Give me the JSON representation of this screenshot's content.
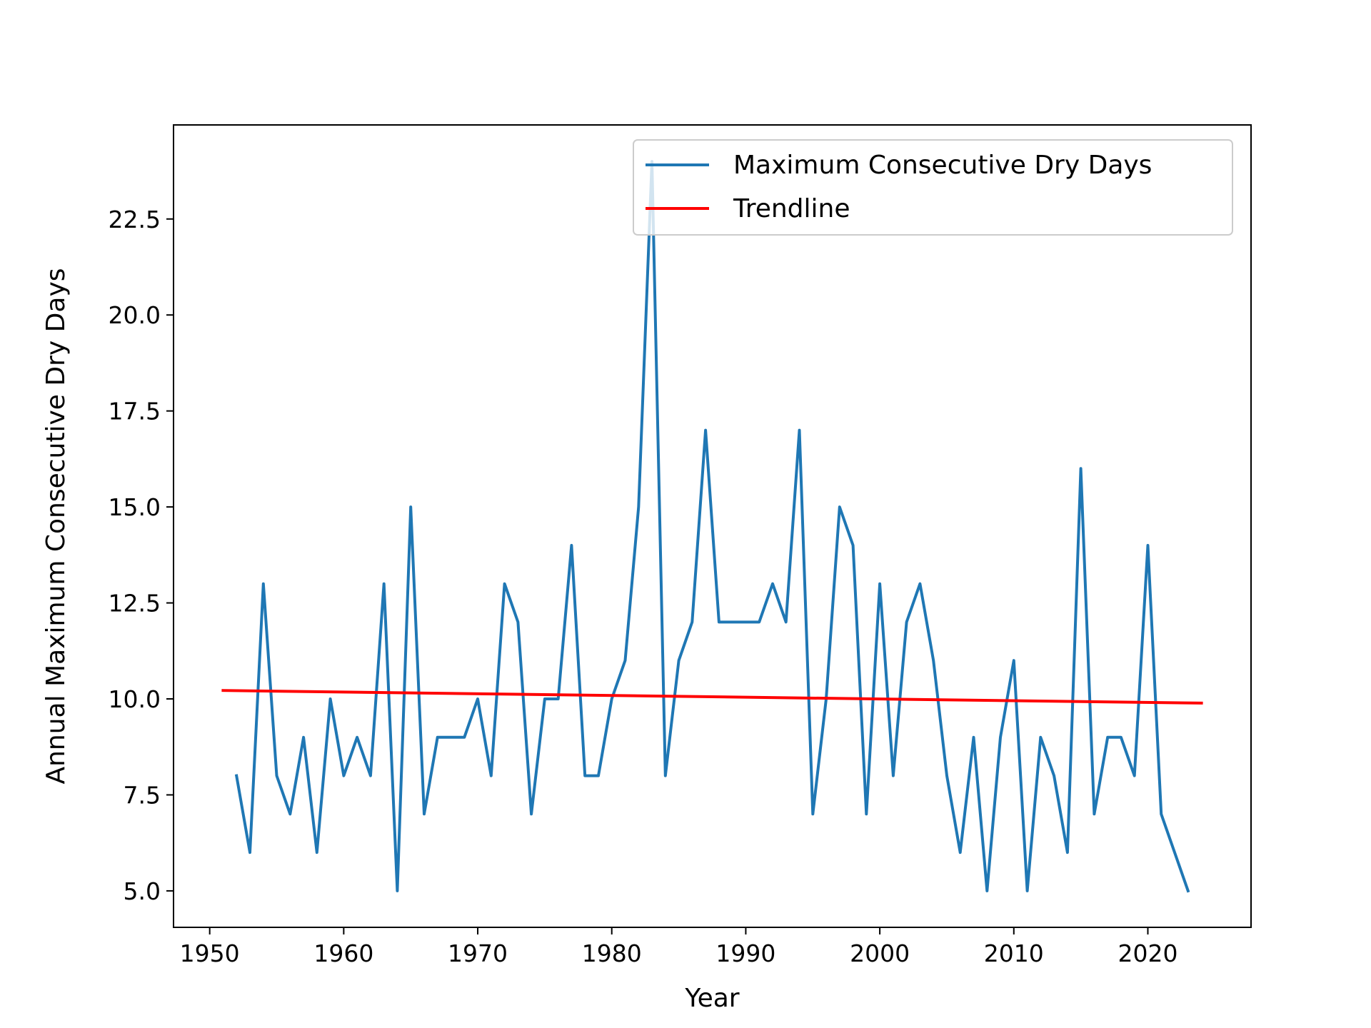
{
  "chart_data": {
    "type": "line",
    "title": "",
    "xlabel": "Year",
    "ylabel": "Annual Maximum Consecutive Dry Days",
    "xlim": [
      1947.3,
      2027.7
    ],
    "ylim": [
      4.05,
      24.95
    ],
    "xticks": [
      1950,
      1960,
      1970,
      1980,
      1990,
      2000,
      2010,
      2020
    ],
    "xtick_labels": [
      "1950",
      "1960",
      "1970",
      "1980",
      "1990",
      "2000",
      "2010",
      "2020"
    ],
    "yticks": [
      5.0,
      7.5,
      10.0,
      12.5,
      15.0,
      17.5,
      20.0,
      22.5
    ],
    "ytick_labels": [
      "5.0",
      "7.5",
      "10.0",
      "12.5",
      "15.0",
      "17.5",
      "20.0",
      "22.5"
    ],
    "grid": false,
    "legend": "top-right",
    "series": [
      {
        "name": "Maximum Consecutive Dry Days",
        "color": "#1f77b4",
        "x": [
          1952,
          1953,
          1954,
          1955,
          1956,
          1957,
          1958,
          1959,
          1960,
          1961,
          1962,
          1963,
          1964,
          1965,
          1966,
          1967,
          1968,
          1969,
          1970,
          1971,
          1972,
          1973,
          1974,
          1975,
          1976,
          1977,
          1978,
          1979,
          1980,
          1981,
          1982,
          1983,
          1984,
          1985,
          1986,
          1987,
          1988,
          1989,
          1990,
          1991,
          1992,
          1993,
          1994,
          1995,
          1996,
          1997,
          1998,
          1999,
          2000,
          2001,
          2002,
          2003,
          2004,
          2005,
          2006,
          2007,
          2008,
          2009,
          2010,
          2011,
          2012,
          2013,
          2014,
          2015,
          2016,
          2017,
          2018,
          2019,
          2020,
          2021,
          2022,
          2023
        ],
        "values": [
          8,
          6,
          13,
          8,
          7,
          9,
          6,
          10,
          8,
          9,
          8,
          13,
          5,
          15,
          7,
          9,
          9,
          9,
          10,
          8,
          13,
          12,
          7,
          10,
          10,
          14,
          8,
          8,
          10,
          11,
          15,
          24,
          8,
          11,
          12,
          17,
          12,
          12,
          12,
          12,
          13,
          12,
          17,
          7,
          10,
          15,
          14,
          7,
          13,
          8,
          12,
          13,
          11,
          8,
          6,
          9,
          5,
          9,
          11,
          5,
          9,
          8,
          6,
          16,
          7,
          9,
          9,
          8,
          14,
          7,
          6,
          5
        ]
      },
      {
        "name": "Trendline",
        "color": "#ff0000",
        "x": [
          1951,
          2024
        ],
        "values": [
          10.22,
          9.89
        ]
      }
    ]
  }
}
